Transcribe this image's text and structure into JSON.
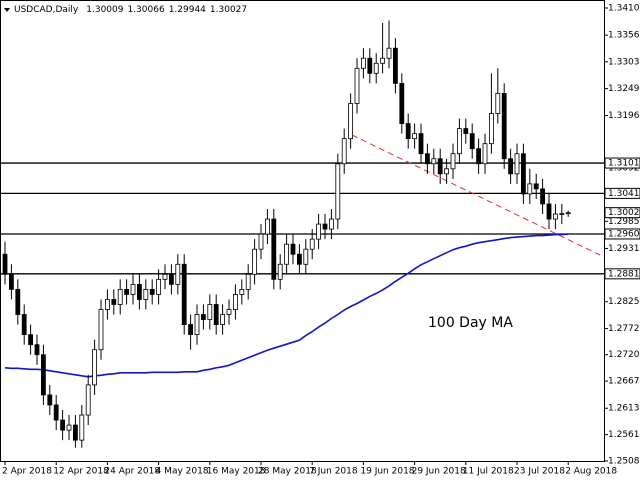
{
  "chart_data": {
    "type": "candlestick",
    "title": "USDCAD,Daily",
    "annotation": "100 Day MA",
    "categories": [
      "2 Apr 2018",
      null,
      null,
      null,
      null,
      null,
      null,
      null,
      "12 Apr 2018",
      null,
      null,
      null,
      null,
      null,
      null,
      null,
      "24 Apr 2018",
      null,
      null,
      null,
      null,
      null,
      null,
      null,
      "4 May 2018",
      null,
      null,
      null,
      null,
      null,
      null,
      null,
      "16 May 2018",
      null,
      null,
      null,
      null,
      null,
      null,
      null,
      "28 May 2018",
      null,
      null,
      null,
      null,
      null,
      null,
      null,
      "7 Jun 2018",
      null,
      null,
      null,
      null,
      null,
      null,
      null,
      "19 Jun 2018",
      null,
      null,
      null,
      null,
      null,
      null,
      null,
      "29 Jun 2018",
      null,
      null,
      null,
      null,
      null,
      null,
      null,
      "11 Jul 2018",
      null,
      null,
      null,
      null,
      null,
      null,
      null,
      "23 Jul 2018",
      null,
      null,
      null,
      null,
      null,
      null,
      null,
      "2 Aug 2018"
    ],
    "open": [
      1.292,
      1.288,
      1.285,
      1.28,
      1.276,
      1.274,
      1.272,
      1.264,
      1.262,
      1.259,
      1.257,
      1.258,
      1.255,
      1.26,
      1.266,
      1.273,
      1.281,
      1.283,
      1.282,
      1.285,
      1.284,
      1.286,
      1.283,
      1.285,
      1.284,
      1.287,
      1.288,
      1.286,
      1.29,
      1.278,
      1.276,
      1.28,
      1.279,
      1.282,
      1.278,
      1.28,
      1.281,
      1.284,
      1.285,
      1.288,
      1.293,
      1.296,
      1.299,
      1.287,
      1.29,
      1.294,
      1.292,
      1.29,
      1.293,
      1.295,
      1.298,
      1.297,
      1.299,
      1.31,
      1.315,
      1.322,
      1.329,
      1.331,
      1.328,
      1.33,
      1.331,
      1.333,
      1.326,
      1.318,
      1.315,
      1.316,
      1.312,
      1.31,
      1.311,
      1.308,
      1.309,
      1.312,
      1.317,
      1.316,
      1.313,
      1.31,
      1.314,
      1.32,
      1.324,
      1.311,
      1.308,
      1.312,
      1.304,
      1.306,
      1.305,
      1.302,
      1.299,
      1.3,
      1.30009
    ],
    "high": [
      1.2945,
      1.29,
      1.287,
      1.282,
      1.278,
      1.276,
      1.274,
      1.266,
      1.264,
      1.261,
      1.26,
      1.26,
      1.262,
      1.268,
      1.275,
      1.283,
      1.285,
      1.285,
      1.287,
      1.287,
      1.288,
      1.288,
      1.287,
      1.287,
      1.289,
      1.29,
      1.29,
      1.292,
      1.292,
      1.28,
      1.282,
      1.282,
      1.284,
      1.284,
      1.282,
      1.283,
      1.286,
      1.287,
      1.29,
      1.295,
      1.298,
      1.301,
      1.301,
      1.292,
      1.296,
      1.296,
      1.294,
      1.295,
      1.297,
      1.3,
      1.3,
      1.301,
      1.312,
      1.317,
      1.324,
      1.331,
      1.333,
      1.333,
      1.332,
      1.338,
      1.3385,
      1.335,
      1.328,
      1.32,
      1.318,
      1.318,
      1.314,
      1.313,
      1.313,
      1.311,
      1.314,
      1.319,
      1.319,
      1.318,
      1.315,
      1.316,
      1.328,
      1.329,
      1.326,
      1.313,
      1.314,
      1.314,
      1.309,
      1.308,
      1.307,
      1.304,
      1.302,
      1.302,
      1.30066
    ],
    "low": [
      1.286,
      1.283,
      1.278,
      1.274,
      1.272,
      1.27,
      1.262,
      1.26,
      1.257,
      1.255,
      1.255,
      1.2535,
      1.2535,
      1.258,
      1.264,
      1.271,
      1.279,
      1.28,
      1.28,
      1.282,
      1.282,
      1.281,
      1.281,
      1.282,
      1.282,
      1.285,
      1.284,
      1.284,
      1.276,
      1.273,
      1.274,
      1.277,
      1.277,
      1.276,
      1.276,
      1.278,
      1.279,
      1.282,
      1.283,
      1.286,
      1.291,
      1.294,
      1.285,
      1.285,
      1.288,
      1.29,
      1.288,
      1.288,
      1.291,
      1.293,
      1.295,
      1.295,
      1.297,
      1.308,
      1.313,
      1.32,
      1.327,
      1.326,
      1.326,
      1.328,
      1.329,
      1.324,
      1.316,
      1.313,
      1.313,
      1.31,
      1.308,
      1.308,
      1.306,
      1.306,
      1.307,
      1.31,
      1.314,
      1.311,
      1.308,
      1.308,
      1.312,
      1.318,
      1.309,
      1.306,
      1.306,
      1.302,
      1.302,
      1.303,
      1.3,
      1.297,
      1.297,
      1.298,
      1.29944
    ],
    "close": [
      1.288,
      1.285,
      1.28,
      1.276,
      1.274,
      1.272,
      1.264,
      1.262,
      1.259,
      1.257,
      1.258,
      1.255,
      1.26,
      1.266,
      1.273,
      1.281,
      1.283,
      1.282,
      1.285,
      1.284,
      1.286,
      1.283,
      1.285,
      1.284,
      1.287,
      1.288,
      1.286,
      1.29,
      1.278,
      1.276,
      1.28,
      1.279,
      1.282,
      1.278,
      1.28,
      1.281,
      1.284,
      1.285,
      1.288,
      1.293,
      1.296,
      1.299,
      1.287,
      1.29,
      1.294,
      1.292,
      1.29,
      1.293,
      1.295,
      1.298,
      1.297,
      1.299,
      1.31,
      1.315,
      1.322,
      1.329,
      1.331,
      1.328,
      1.33,
      1.331,
      1.333,
      1.326,
      1.318,
      1.315,
      1.316,
      1.312,
      1.31,
      1.311,
      1.308,
      1.309,
      1.312,
      1.317,
      1.316,
      1.313,
      1.31,
      1.314,
      1.32,
      1.324,
      1.311,
      1.308,
      1.312,
      1.304,
      1.306,
      1.305,
      1.302,
      1.299,
      1.3,
      1.30009,
      1.30027
    ],
    "up_color": "#ffffff",
    "down_color": "#000000",
    "ma": {
      "color": "#1414c8",
      "values": [
        1.2694,
        1.2693,
        1.2693,
        1.2692,
        1.2691,
        1.2691,
        1.269,
        1.2688,
        1.2686,
        1.2684,
        1.2682,
        1.268,
        1.2678,
        1.2676,
        1.2678,
        1.2679,
        1.2681,
        1.2682,
        1.2684,
        1.2684,
        1.2684,
        1.2684,
        1.2684,
        1.2685,
        1.2685,
        1.2685,
        1.2685,
        1.2685,
        1.2686,
        1.2686,
        1.2686,
        1.2689,
        1.2691,
        1.2694,
        1.2696,
        1.2699,
        1.2704,
        1.2709,
        1.2714,
        1.2719,
        1.2724,
        1.2729,
        1.2733,
        1.2737,
        1.2741,
        1.2745,
        1.2749,
        1.2758,
        1.2766,
        1.2775,
        1.2783,
        1.2792,
        1.28,
        1.2809,
        1.2816,
        1.2822,
        1.2829,
        1.2836,
        1.2842,
        1.2849,
        1.2857,
        1.2866,
        1.2874,
        1.2882,
        1.2891,
        1.2899,
        1.2905,
        1.2911,
        1.2917,
        1.2923,
        1.2929,
        1.2933,
        1.2936,
        1.294,
        1.2943,
        1.2945,
        1.2947,
        1.2949,
        1.2951,
        1.2953,
        1.2954,
        1.2955,
        1.2956,
        1.2957,
        1.2957,
        1.2958,
        1.2959,
        1.2959,
        1.296
      ]
    },
    "levels": [
      1.31014,
      1.30411,
      1.29603,
      {
        "value": 1.2881,
        "label": "1.28810"
      }
    ],
    "ylim": [
      1.25085,
      1.341
    ],
    "yticks": [
      {
        "value": 1.341,
        "label": "1.34100"
      },
      {
        "value": 1.3356,
        "label": "1.33560"
      },
      {
        "value": 1.3303,
        "label": "1.33030"
      },
      1.32495,
      {
        "value": 1.3196,
        "label": "1.31960"
      },
      {
        "value": 1.3092,
        "label": "1.30920"
      },
      1.29855,
      1.29315,
      1.28255,
      {
        "value": 1.2772,
        "label": "1.27720"
      },
      {
        "value": 1.272,
        "label": "1.27200"
      },
      1.26675,
      1.26135,
      {
        "value": 1.2561,
        "label": "1.25610"
      },
      1.25085
    ]
  }
}
